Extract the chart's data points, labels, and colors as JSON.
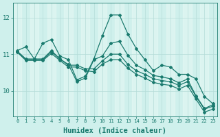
{
  "x": [
    0,
    1,
    2,
    3,
    4,
    5,
    6,
    7,
    8,
    9,
    10,
    11,
    12,
    13,
    14,
    15,
    16,
    17,
    18,
    19,
    20,
    21,
    22,
    23
  ],
  "line1": [
    11.1,
    11.2,
    10.87,
    11.3,
    11.4,
    10.95,
    10.85,
    10.3,
    10.4,
    10.87,
    11.5,
    12.07,
    12.07,
    11.55,
    11.15,
    10.85,
    10.55,
    10.7,
    10.65,
    10.45,
    10.45,
    10.33,
    9.85,
    9.65
  ],
  "line2": [
    11.08,
    10.87,
    10.87,
    10.87,
    11.1,
    10.87,
    10.72,
    10.25,
    10.35,
    10.85,
    10.95,
    11.3,
    11.35,
    10.97,
    10.7,
    10.58,
    10.42,
    10.38,
    10.33,
    10.22,
    10.32,
    9.87,
    9.52,
    9.62
  ],
  "line3": [
    11.08,
    10.85,
    10.85,
    10.85,
    11.07,
    10.87,
    10.7,
    10.7,
    10.6,
    10.6,
    10.82,
    11.0,
    11.0,
    10.72,
    10.55,
    10.45,
    10.33,
    10.28,
    10.25,
    10.15,
    10.25,
    9.85,
    9.5,
    9.58
  ],
  "line4": [
    11.05,
    10.83,
    10.83,
    10.83,
    11.02,
    10.83,
    10.65,
    10.65,
    10.55,
    10.52,
    10.73,
    10.85,
    10.85,
    10.62,
    10.45,
    10.35,
    10.23,
    10.18,
    10.15,
    10.05,
    10.15,
    9.78,
    9.42,
    9.5
  ],
  "color": "#1a7a6e",
  "bg_color": "#cff0ec",
  "grid_color_major": "#b5ddd8",
  "grid_color_minor": "#daf5f2",
  "yticks": [
    10,
    11,
    12
  ],
  "ylim": [
    9.3,
    12.4
  ],
  "xlim": [
    -0.5,
    23.5
  ],
  "xlabel": "Humidex (Indice chaleur)",
  "xlabel_fontsize": 7.5
}
